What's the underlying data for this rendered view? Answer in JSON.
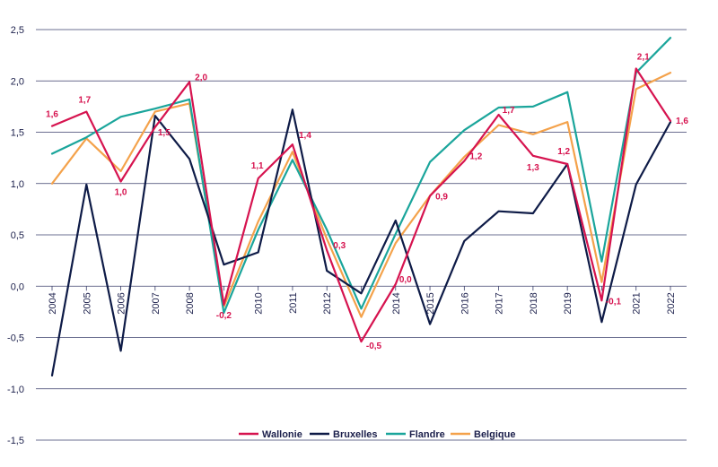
{
  "chart_data": {
    "type": "line",
    "title": "",
    "xlabel": "",
    "ylabel": "",
    "x": [
      "2004",
      "2005",
      "2006",
      "2007",
      "2008",
      "2009",
      "2010",
      "2011",
      "2012",
      "2013",
      "2014",
      "2015",
      "2016",
      "2017",
      "2018",
      "2019",
      "2020",
      "2021",
      "2022"
    ],
    "x_tick_labels": [
      "2004",
      "2005",
      "2006",
      "2007",
      "2008",
      "",
      "2010",
      "2011",
      "2012",
      "",
      "2014",
      "2015",
      "2016",
      "2017",
      "2018",
      "2019",
      "",
      "2021",
      "2022"
    ],
    "ylim": [
      -1.5,
      2.5
    ],
    "y_ticks": [
      -1.5,
      -1.0,
      -0.5,
      0.0,
      0.5,
      1.0,
      1.5,
      2.0,
      2.5
    ],
    "y_tick_labels": [
      "-1,5",
      "-1,0",
      "-0,5",
      "0,0",
      "0,5",
      "1,0",
      "1,5",
      "2,0",
      "2,5"
    ],
    "grid": "horizontal",
    "legend_position": "bottom",
    "series": [
      {
        "name": "Wallonie",
        "color": "#d6134f",
        "values": [
          1.56,
          1.7,
          1.02,
          1.55,
          1.99,
          -0.18,
          1.05,
          1.38,
          0.35,
          -0.54,
          0.02,
          0.88,
          1.22,
          1.67,
          1.27,
          1.19,
          -0.14,
          2.12,
          1.61
        ],
        "labels": [
          "1,6",
          "1,7",
          "1,0",
          "1,5",
          "2,0",
          "-0,2",
          "1,1",
          "1,4",
          "0,3",
          "-0,5",
          "0,0",
          "0,9",
          "1,2",
          "1,7",
          "1,3",
          "1,2",
          "-0,1",
          "2,1",
          "1,6"
        ]
      },
      {
        "name": "Bruxelles",
        "color": "#0e1b47",
        "values": [
          -0.87,
          0.99,
          -0.63,
          1.66,
          1.24,
          0.21,
          0.33,
          1.72,
          0.15,
          -0.07,
          0.64,
          -0.37,
          0.44,
          0.73,
          0.71,
          1.19,
          -0.35,
          0.99,
          1.6
        ]
      },
      {
        "name": "Flandre",
        "color": "#1aa59b",
        "values": [
          1.29,
          1.45,
          1.65,
          1.73,
          1.82,
          -0.26,
          0.55,
          1.23,
          0.55,
          -0.22,
          0.51,
          1.21,
          1.52,
          1.74,
          1.75,
          1.89,
          0.24,
          2.08,
          2.42
        ]
      },
      {
        "name": "Belgique",
        "color": "#f4a24b",
        "values": [
          1.0,
          1.44,
          1.12,
          1.7,
          1.78,
          -0.2,
          0.63,
          1.31,
          0.46,
          -0.3,
          0.42,
          0.88,
          1.26,
          1.57,
          1.48,
          1.6,
          0.04,
          1.92,
          2.08
        ]
      }
    ]
  }
}
